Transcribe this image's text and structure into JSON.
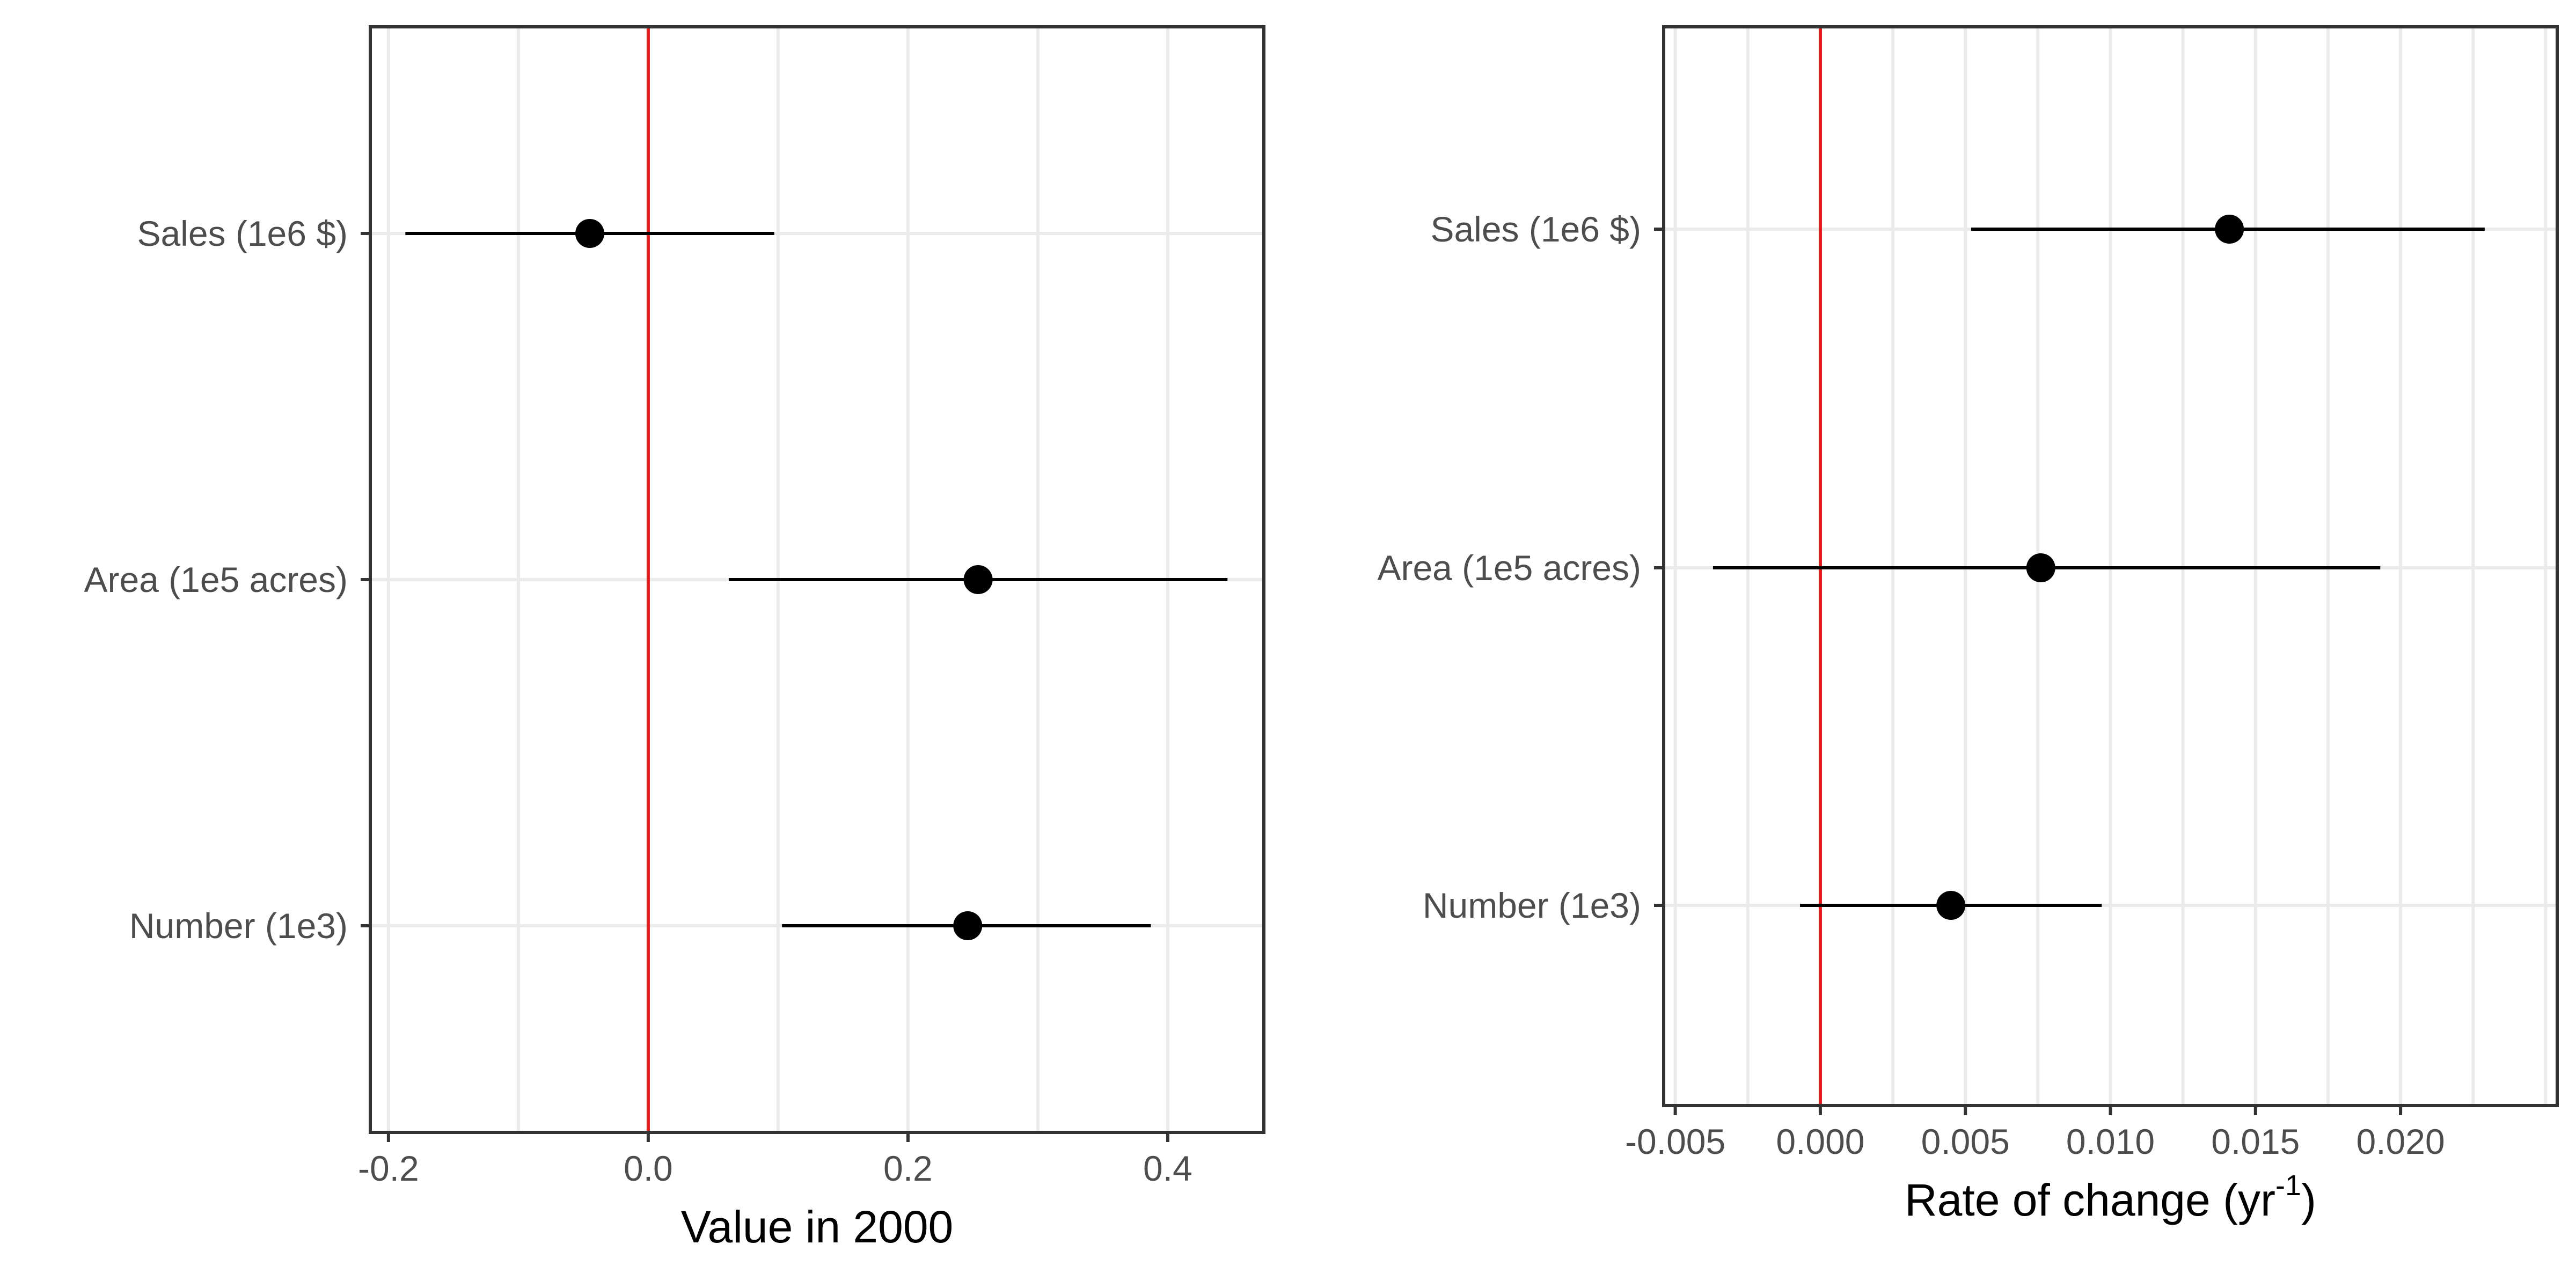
{
  "chart_data": [
    {
      "type": "scatter",
      "xlabel": "Value in 2000",
      "ylabel": "",
      "categories": [
        "Sales (1e6 $)",
        "Area (1e5 acres)",
        "Number (1e3)"
      ],
      "points": [
        {
          "category": "Sales (1e6 $)",
          "x": -0.045,
          "xmin": -0.187,
          "xmax": 0.097
        },
        {
          "category": "Area (1e5 acres)",
          "x": 0.254,
          "xmin": 0.062,
          "xmax": 0.446
        },
        {
          "category": "Number (1e3)",
          "x": 0.246,
          "xmin": 0.103,
          "xmax": 0.387
        }
      ],
      "reference_line": {
        "x": 0,
        "color": "#e31a1c"
      },
      "xlim": [
        -0.214,
        0.474
      ],
      "xticks": [
        -0.2,
        0.0,
        0.2,
        0.4
      ],
      "xtick_labels": [
        "-0.2",
        "0.0",
        "0.2",
        "0.4"
      ],
      "grid": true
    },
    {
      "type": "scatter",
      "xlabel": "Rate of change (yr",
      "xlabel_superscript": "-1",
      "xlabel_suffix": ")",
      "ylabel": "",
      "categories": [
        "Sales (1e6 $)",
        "Area (1e5 acres)",
        "Number (1e3)"
      ],
      "points": [
        {
          "category": "Sales (1e6 $)",
          "x": 0.0141,
          "xmin": 0.0052,
          "xmax": 0.0229
        },
        {
          "category": "Area (1e5 acres)",
          "x": 0.0076,
          "xmin": -0.0037,
          "xmax": 0.0193
        },
        {
          "category": "Number (1e3)",
          "x": 0.0045,
          "xmin": -0.0007,
          "xmax": 0.0097
        }
      ],
      "reference_line": {
        "x": 0,
        "color": "#e31a1c"
      },
      "xlim": [
        -0.0054,
        0.0254
      ],
      "xticks": [
        -0.005,
        0.0,
        0.005,
        0.01,
        0.015,
        0.02
      ],
      "xtick_labels": [
        "-0.005",
        "0.000",
        "0.005",
        "0.010",
        "0.015",
        "0.020"
      ],
      "grid": true
    }
  ],
  "colors": {
    "point": "#000000",
    "errorbar": "#000000",
    "grid": "#ebebeb",
    "panel_border": "#333333",
    "reference_line": "#e31a1c",
    "tick_label": "#4d4d4d"
  }
}
